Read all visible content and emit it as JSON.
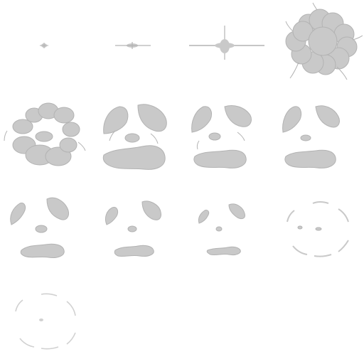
{
  "sprite_sheet": {
    "background": "#ffffff",
    "smoke_fill": "#c9c9c9",
    "smoke_stroke": "#b3b3b3",
    "frames_total": 13
  }
}
